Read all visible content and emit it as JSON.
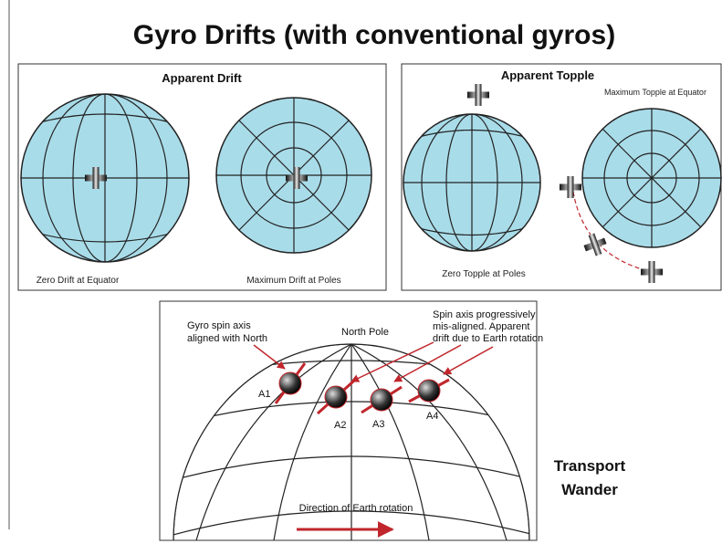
{
  "title": "Gyro Drifts (with conventional gyros)",
  "apparent_drift": {
    "title": "Apparent Drift",
    "left_caption": "Zero Drift at Equator",
    "right_caption": "Maximum Drift at Poles"
  },
  "apparent_topple": {
    "title": "Apparent Topple",
    "right_caption": "Maximum Topple at Equator",
    "left_caption": "Zero Topple at Poles"
  },
  "transport_wander": {
    "aligned_note": [
      "Gyro spin axis",
      "aligned with North"
    ],
    "north_pole": "North Pole",
    "misaligned_note": [
      "Spin axis progressively",
      "mis-aligned. Apparent",
      "drift due to Earth rotation"
    ],
    "gyro_labels": [
      "A1",
      "A2",
      "A3",
      "A4"
    ],
    "rotation_label": "Direction of Earth rotation",
    "side_label": [
      "Transport",
      "Wander"
    ]
  }
}
